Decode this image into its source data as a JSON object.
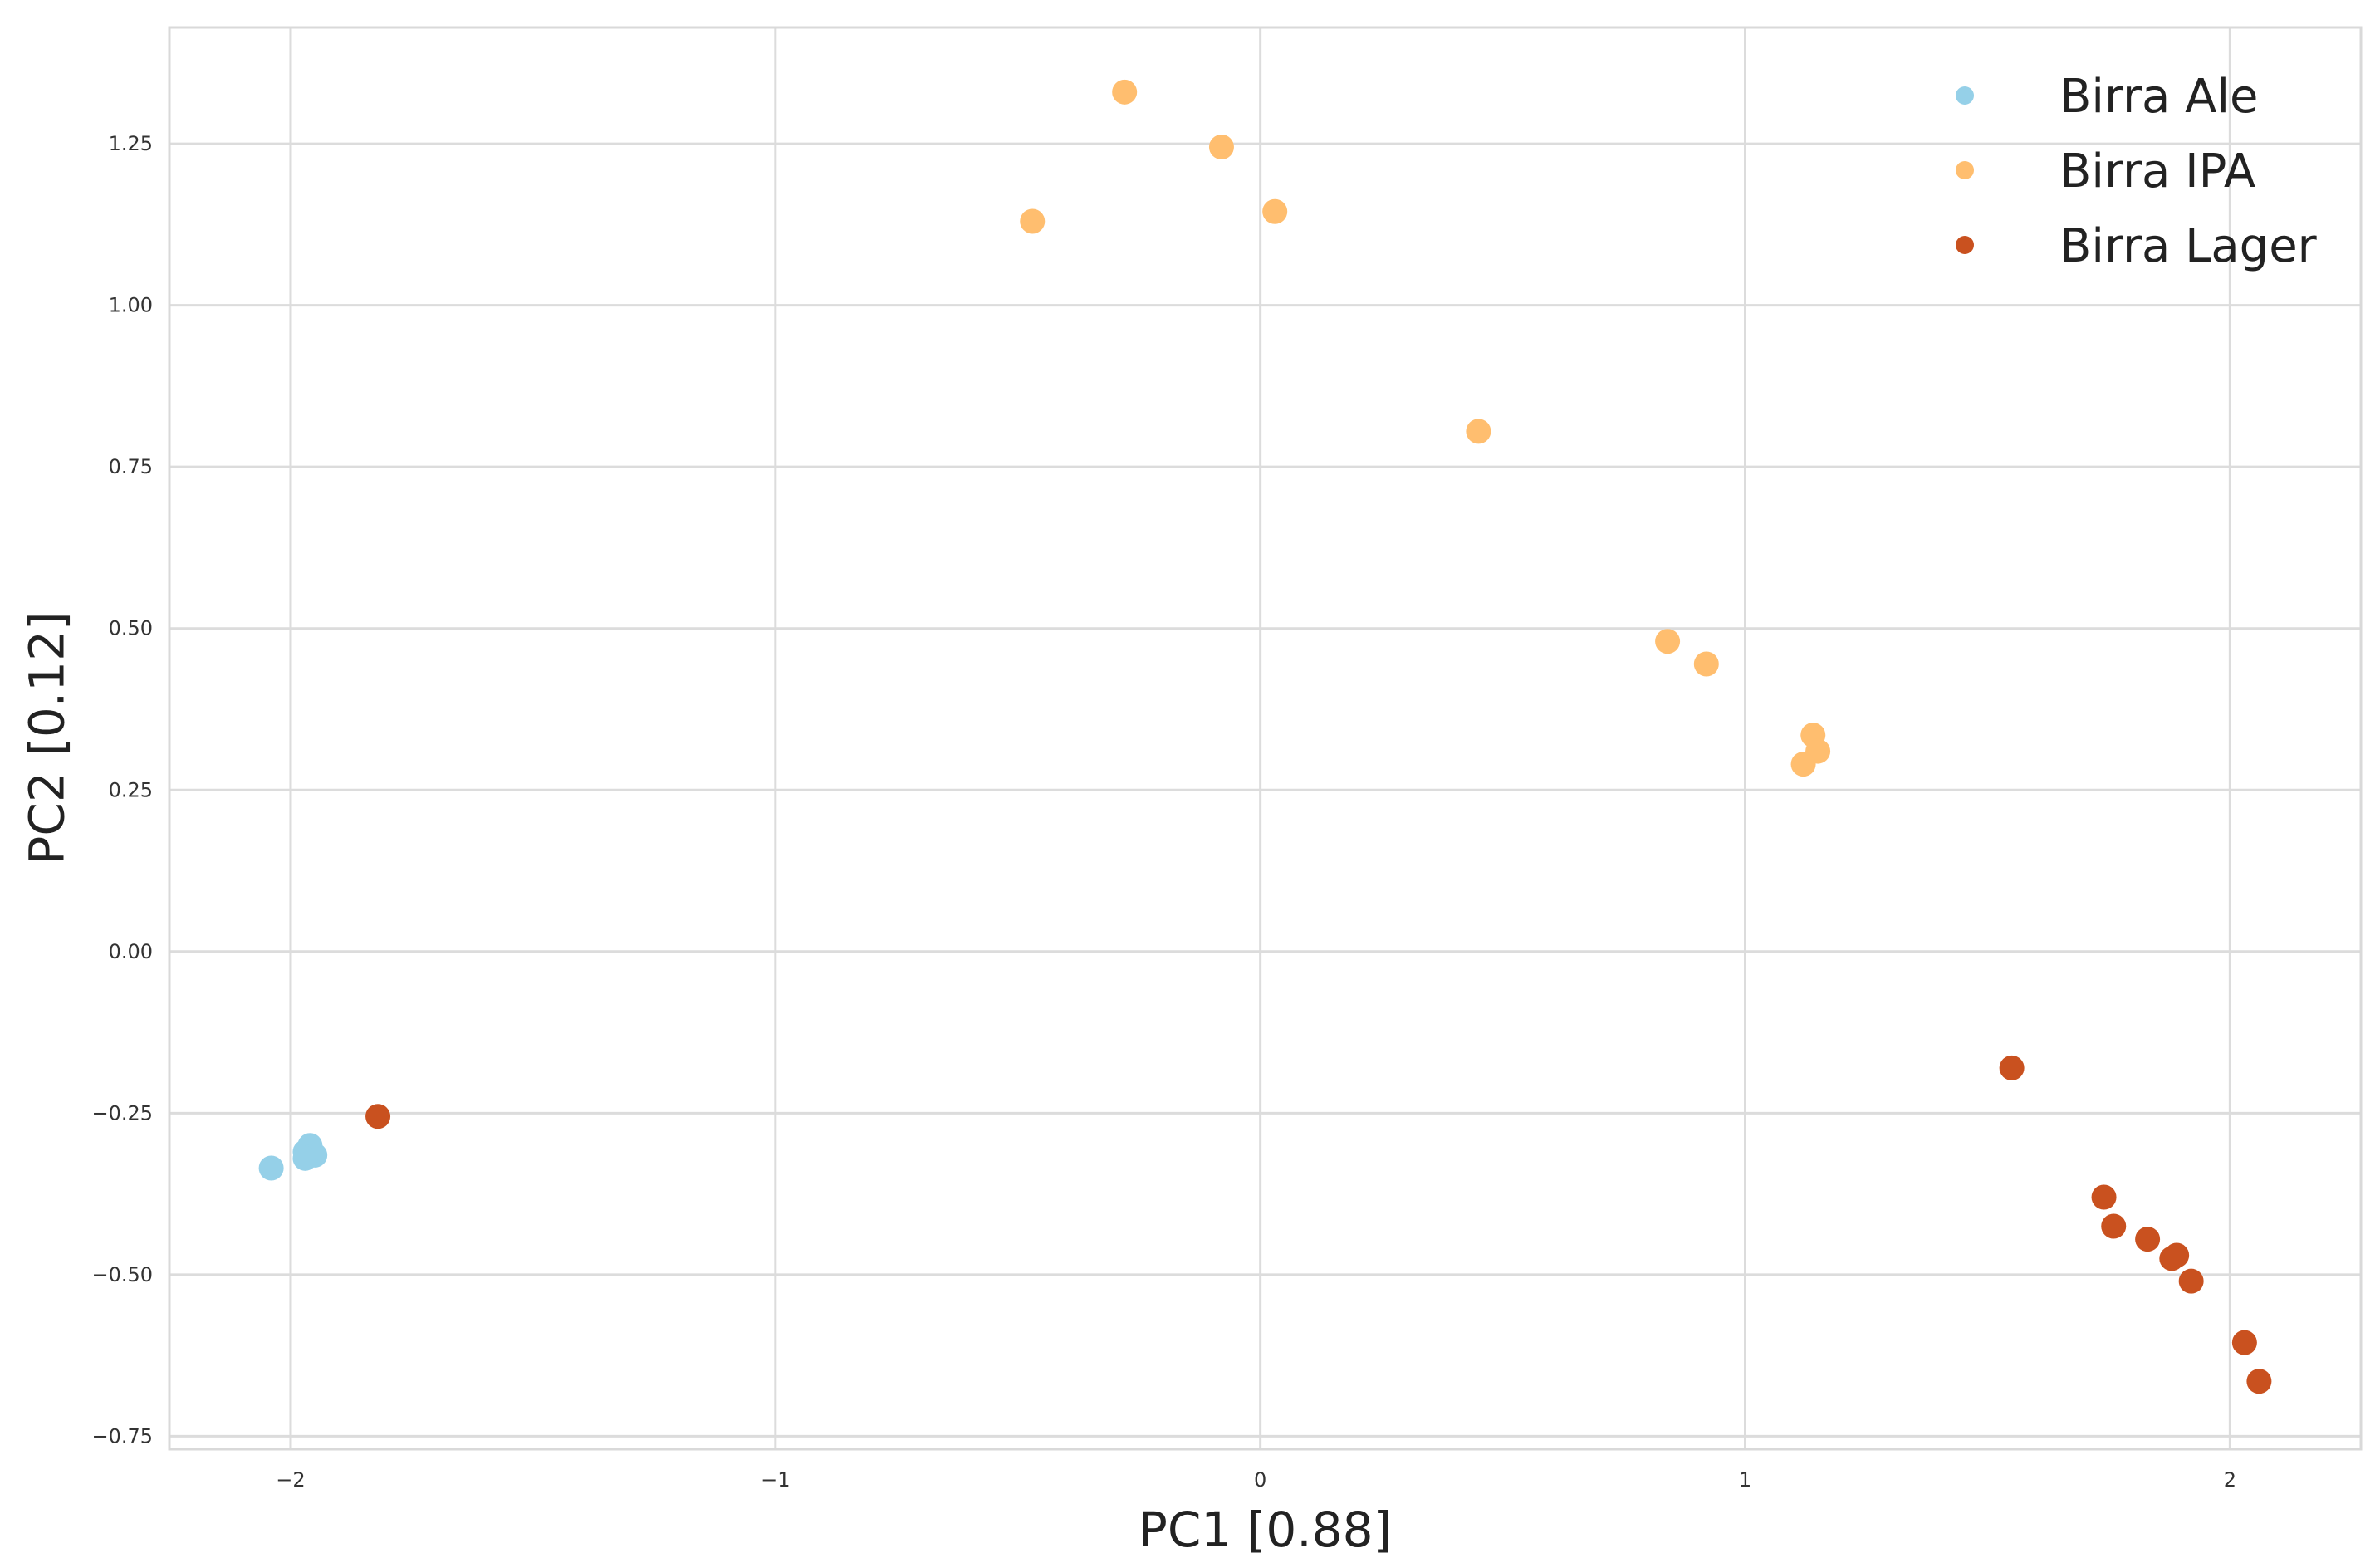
{
  "chart_data": {
    "type": "scatter",
    "title": "",
    "xlabel": "PC1 [0.88]",
    "ylabel": "PC2 [0.12]",
    "xlim": [
      -2.25,
      2.27
    ],
    "ylim": [
      -0.77,
      1.43
    ],
    "xticks": [
      {
        "value": -2,
        "label": "−2"
      },
      {
        "value": -1,
        "label": "−1"
      },
      {
        "value": 0,
        "label": "0"
      },
      {
        "value": 1,
        "label": "1"
      },
      {
        "value": 2,
        "label": "2"
      }
    ],
    "yticks": [
      {
        "value": -0.75,
        "label": "−0.75"
      },
      {
        "value": -0.5,
        "label": "−0.50"
      },
      {
        "value": -0.25,
        "label": "−0.25"
      },
      {
        "value": 0,
        "label": "0.00"
      },
      {
        "value": 0.25,
        "label": "0.25"
      },
      {
        "value": 0.5,
        "label": "0.50"
      },
      {
        "value": 0.75,
        "label": "0.75"
      },
      {
        "value": 1.0,
        "label": "1.00"
      },
      {
        "value": 1.25,
        "label": "1.25"
      }
    ],
    "grid": true,
    "legend_position": "top-right",
    "series": [
      {
        "name": "Birra Ale",
        "color": "#95d0e8",
        "points": [
          {
            "x": -2.04,
            "y": -0.335
          },
          {
            "x": -1.97,
            "y": -0.31
          },
          {
            "x": -1.96,
            "y": -0.3
          },
          {
            "x": -1.95,
            "y": -0.315
          },
          {
            "x": -1.97,
            "y": -0.32
          }
        ]
      },
      {
        "name": "Birra IPA",
        "color": "#ffbe6f",
        "points": [
          {
            "x": -0.28,
            "y": 1.33
          },
          {
            "x": -0.08,
            "y": 1.245
          },
          {
            "x": 0.03,
            "y": 1.145
          },
          {
            "x": -0.47,
            "y": 1.13
          },
          {
            "x": 0.45,
            "y": 0.805
          },
          {
            "x": 0.84,
            "y": 0.48
          },
          {
            "x": 0.92,
            "y": 0.445
          },
          {
            "x": 1.14,
            "y": 0.335
          },
          {
            "x": 1.15,
            "y": 0.31
          },
          {
            "x": 1.12,
            "y": 0.29
          }
        ]
      },
      {
        "name": "Birra Lager",
        "color": "#c9511f",
        "points": [
          {
            "x": -1.82,
            "y": -0.255
          },
          {
            "x": 1.55,
            "y": -0.18
          },
          {
            "x": 1.74,
            "y": -0.38
          },
          {
            "x": 1.76,
            "y": -0.425
          },
          {
            "x": 1.83,
            "y": -0.445
          },
          {
            "x": 1.88,
            "y": -0.475
          },
          {
            "x": 1.89,
            "y": -0.47
          },
          {
            "x": 1.92,
            "y": -0.51
          },
          {
            "x": 2.03,
            "y": -0.605
          },
          {
            "x": 2.06,
            "y": -0.665
          }
        ]
      }
    ]
  }
}
